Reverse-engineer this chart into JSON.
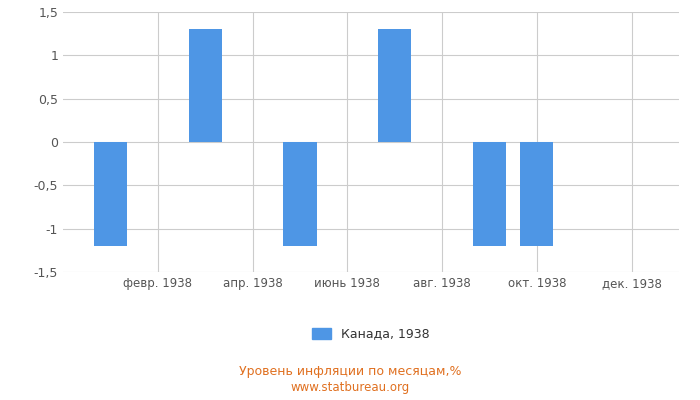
{
  "x_positions": [
    1,
    3,
    5,
    7,
    9,
    10
  ],
  "values": [
    -1.2,
    1.3,
    -1.2,
    1.3,
    -1.2,
    -1.2
  ],
  "x_tick_positions": [
    2,
    4,
    6,
    8,
    10,
    12
  ],
  "x_tick_labels": [
    "февр. 1938",
    "апр. 1938",
    "июнь 1938",
    "авг. 1938",
    "окт. 1938",
    "дек. 1938"
  ],
  "xlim": [
    0,
    13
  ],
  "bar_color": "#4e96e5",
  "ylim": [
    -1.5,
    1.5
  ],
  "yticks": [
    -1.5,
    -1.0,
    -0.5,
    0.0,
    0.5,
    1.0,
    1.5
  ],
  "ytick_labels": [
    "-1,5",
    "-1",
    "-0,5",
    "0",
    "0,5",
    "1",
    "1,5"
  ],
  "legend_label": "Канада, 1938",
  "subtitle": "Уровень инфляции по месяцам,%",
  "footer": "www.statbureau.org",
  "background_color": "#ffffff",
  "grid_color": "#cccccc",
  "bar_width": 0.7,
  "text_color_orange": "#e07020",
  "tick_color": "#555555"
}
